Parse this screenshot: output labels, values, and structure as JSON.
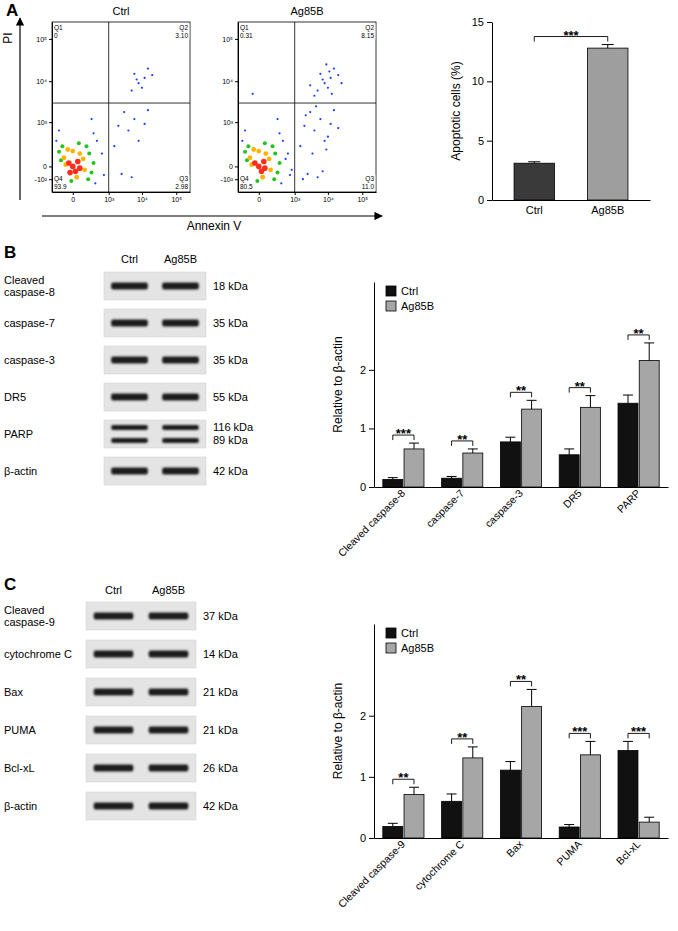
{
  "chart_data": [
    {
      "type": "scatter",
      "panel": "A",
      "title": "Ctrl",
      "ylabel": "PI",
      "log": true,
      "xlim": [
        -300,
        250000
      ],
      "ylim": [
        -300,
        250000
      ],
      "xticks": [
        0,
        {
          "value": 1000,
          "label": "10³"
        },
        {
          "value": 10000,
          "label": "10⁴"
        },
        {
          "value": 100000,
          "label": "10⁵"
        }
      ],
      "yticks": [
        {
          "value": -100,
          "label": "-10²"
        },
        0,
        {
          "value": 1000,
          "label": "10³"
        },
        {
          "value": 10000,
          "label": "10⁴"
        },
        {
          "value": 100000,
          "label": "10⁵"
        }
      ],
      "gates": {
        "x": 1000,
        "y": 3000
      },
      "quadrants": [
        {
          "name": "Q1",
          "value": 0
        },
        {
          "name": "Q2",
          "value": 3.1,
          "label": "3.10"
        },
        {
          "name": "Q3",
          "value": 2.98
        },
        {
          "name": "Q4",
          "value": 93.9
        }
      ],
      "series": [
        {
          "color": "#1c3cff",
          "x": [
            400,
            -200,
            350,
            600,
            300,
            700,
            1500,
            2500,
            4000,
            6000,
            3000,
            8000,
            12000,
            2000,
            5000,
            15000,
            5000,
            8000,
            12000,
            6000,
            10000,
            15000,
            7000,
            20000,
            -150,
            250
          ],
          "values": [
            300,
            300,
            -150,
            100,
            500,
            -60,
            200,
            -50,
            600,
            1200,
            1800,
            300,
            900,
            800,
            -80,
            2000,
            6000,
            9000,
            12000,
            15000,
            7000,
            20000,
            11000,
            14000,
            600,
            1200
          ]
        },
        {
          "color": "#22c41c",
          "x": [
            200,
            -150,
            150,
            -120,
            250,
            50,
            -10,
            180,
            -100,
            300
          ],
          "values": [
            100,
            120,
            200,
            40,
            -40,
            250,
            -120,
            -100,
            200,
            20
          ]
        },
        {
          "color": "#ffb300",
          "x": [
            100,
            -80,
            60,
            -60,
            120,
            0,
            30,
            -40
          ],
          "values": [
            50,
            60,
            100,
            10,
            -20,
            130,
            -80,
            150
          ]
        },
        {
          "color": "#ff2d1a",
          "x": [
            0,
            40,
            -30,
            20,
            60,
            -20
          ],
          "values": [
            0,
            30,
            20,
            -30,
            -10,
            -40
          ]
        }
      ]
    },
    {
      "type": "scatter",
      "title": "Ag85B",
      "xlabel": "Annexin V",
      "log": true,
      "xlim": [
        -300,
        250000
      ],
      "ylim": [
        -300,
        250000
      ],
      "xticks": [
        0,
        {
          "value": 1000,
          "label": "10³"
        },
        {
          "value": 10000,
          "label": "10⁴"
        },
        {
          "value": 100000,
          "label": "10⁵"
        }
      ],
      "yticks": [
        {
          "value": -100,
          "label": "-10²"
        },
        0,
        {
          "value": 1000,
          "label": "10³"
        },
        {
          "value": 10000,
          "label": "10⁴"
        },
        {
          "value": 100000,
          "label": "10⁵"
        }
      ],
      "gates": {
        "x": 1000,
        "y": 3000
      },
      "quadrants": [
        {
          "name": "Q1",
          "value": 0.31
        },
        {
          "name": "Q2",
          "value": 8.15
        },
        {
          "name": "Q3",
          "value": 11,
          "label": "11.0"
        },
        {
          "name": "Q4",
          "value": 80.5
        }
      ],
      "series": [
        {
          "color": "#1c3cff",
          "x": [
            400,
            -200,
            350,
            600,
            300,
            700,
            -150,
            250,
            500,
            800,
            1500,
            2500,
            4000,
            6000,
            3000,
            8000,
            12000,
            2000,
            5000,
            15000,
            1800,
            3500,
            7000,
            10000,
            20000,
            2200,
            4500,
            9000,
            5000,
            8000,
            12000,
            6000,
            10000,
            15000,
            7000,
            20000,
            4000,
            9000,
            25000,
            13000,
            3000,
            11000,
            -50
          ],
          "values": [
            300,
            300,
            -150,
            100,
            500,
            -60,
            600,
            1200,
            50,
            -20,
            200,
            -50,
            600,
            1200,
            1800,
            300,
            900,
            800,
            -80,
            2000,
            -100,
            100,
            -30,
            400,
            700,
            1500,
            2500,
            150,
            6000,
            9000,
            12000,
            15000,
            7000,
            20000,
            11000,
            14000,
            4500,
            25000,
            9000,
            5000,
            8000,
            17000,
            5000
          ]
        },
        {
          "color": "#22c41c",
          "x": [
            200,
            -150,
            150,
            -120,
            250,
            50,
            -10,
            180,
            -100,
            300
          ],
          "values": [
            100,
            120,
            200,
            40,
            -40,
            250,
            -120,
            -100,
            200,
            20
          ]
        },
        {
          "color": "#ffb300",
          "x": [
            100,
            -80,
            60,
            -60,
            120,
            0,
            30,
            -40
          ],
          "values": [
            50,
            60,
            100,
            10,
            -20,
            130,
            -80,
            150
          ]
        },
        {
          "color": "#ff2d1a",
          "x": [
            0,
            40,
            -30,
            20,
            50
          ],
          "values": [
            0,
            30,
            20,
            -30,
            -10
          ]
        }
      ]
    },
    {
      "type": "bar",
      "categories": [
        "Ctrl",
        "Ag85B"
      ],
      "values": [
        3.1,
        12.8
      ],
      "errors": [
        0.12,
        0.3
      ],
      "colors": [
        "#3a3a3a",
        "#9e9e9e"
      ],
      "ylabel": "Apoptotic cells (%)",
      "ylim": [
        0,
        15
      ],
      "yticks": [
        0,
        5,
        10,
        15
      ],
      "significance": "***"
    },
    {
      "type": "blot",
      "panel": "B",
      "lanes": [
        "Ctrl",
        "Ag85B"
      ],
      "rows": [
        {
          "label": "Cleaved caspase-8",
          "size": "18 kDa"
        },
        {
          "label": "caspase-7",
          "size": "35 kDa"
        },
        {
          "label": "caspase-3",
          "size": "35 kDa"
        },
        {
          "label": "DR5",
          "size": "55 kDa"
        },
        {
          "label": "PARP",
          "size": [
            "116 kDa",
            "89 kDa"
          ]
        },
        {
          "label": "β-actin",
          "size": "42 kDa"
        }
      ]
    },
    {
      "type": "bar",
      "categories": [
        "Cleaved caspase-8",
        "caspase-7",
        "caspase-3",
        "DR5",
        "PARP"
      ],
      "series": [
        {
          "name": "Ctrl",
          "color": "#111111",
          "values": [
            0.13,
            0.15,
            0.77,
            0.55,
            1.43
          ],
          "errors": [
            0.03,
            0.03,
            0.08,
            0.1,
            0.14
          ]
        },
        {
          "name": "Ag85B",
          "color": "#a6a6a6",
          "values": [
            0.65,
            0.58,
            1.33,
            1.36,
            2.16
          ],
          "errors": [
            0.1,
            0.07,
            0.15,
            0.2,
            0.3
          ]
        }
      ],
      "ylabel": "Relative to β-actin",
      "ylim": [
        0,
        3.5
      ],
      "yticks": [
        0,
        1,
        2
      ],
      "legend": "top-left",
      "significance": [
        "***",
        "**",
        "**",
        "**",
        "**"
      ]
    },
    {
      "type": "blot",
      "panel": "C",
      "lanes": [
        "Ctrl",
        "Ag85B"
      ],
      "rows": [
        {
          "label": "Cleaved caspase-9",
          "size": "37 kDa"
        },
        {
          "label": "cytochrome C",
          "size": "14 kDa"
        },
        {
          "label": "Bax",
          "size": "21 kDa"
        },
        {
          "label": "PUMA",
          "size": "21 kDa"
        },
        {
          "label": "Bcl-xL",
          "size": "26 kDa"
        },
        {
          "label": "β-actin",
          "size": "42 kDa"
        }
      ]
    },
    {
      "type": "bar",
      "categories": [
        "Cleaved caspase-9",
        "cytochrome C",
        "Bax",
        "PUMA",
        "Bcl-xL"
      ],
      "series": [
        {
          "name": "Ctrl",
          "color": "#111111",
          "values": [
            0.19,
            0.6,
            1.11,
            0.18,
            1.43
          ],
          "errors": [
            0.05,
            0.12,
            0.14,
            0.04,
            0.15
          ]
        },
        {
          "name": "Ag85B",
          "color": "#a6a6a6",
          "values": [
            0.71,
            1.31,
            2.15,
            1.36,
            0.26
          ],
          "errors": [
            0.12,
            0.18,
            0.28,
            0.22,
            0.08
          ]
        }
      ],
      "ylabel": "Relative to β-actin",
      "ylim": [
        0,
        3.5
      ],
      "yticks": [
        0,
        1,
        2
      ],
      "legend": "top-left",
      "significance": [
        "**",
        "**",
        "**",
        "***",
        "***"
      ]
    }
  ]
}
